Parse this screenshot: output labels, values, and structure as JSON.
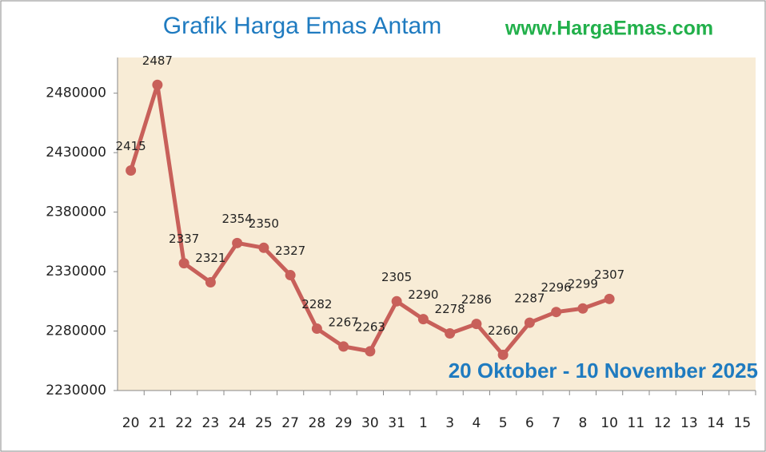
{
  "chart_data": {
    "type": "line",
    "title": "Grafik Harga Emas Antam",
    "source": "www.HargaEmas.com",
    "annotation": "20 Oktober - 10 November 2025",
    "categories": [
      "20",
      "21",
      "22",
      "23",
      "24",
      "25",
      "27",
      "28",
      "29",
      "30",
      "31",
      "1",
      "3",
      "4",
      "5",
      "6",
      "7",
      "8",
      "10",
      "11",
      "12",
      "13",
      "14",
      "15"
    ],
    "values": [
      2415000,
      2487000,
      2337000,
      2321000,
      2354000,
      2350000,
      2327000,
      2282000,
      2267000,
      2263000,
      2305000,
      2290000,
      2278000,
      2286000,
      2260000,
      2287000,
      2296000,
      2299000,
      2307000,
      null,
      null,
      null,
      null,
      null
    ],
    "value_labels": [
      "2415",
      "2487",
      "2337",
      "2321",
      "2354",
      "2350",
      "2327",
      "2282",
      "2267",
      "2263",
      "2305",
      "2290",
      "2278",
      "2286",
      "2260",
      "2287",
      "2296",
      "2299",
      "2307",
      null,
      null,
      null,
      null,
      null
    ],
    "color": "#c8605a",
    "ylim": [
      2230000,
      2510000
    ],
    "yticks": [
      2230000,
      2280000,
      2330000,
      2380000,
      2430000,
      2480000
    ]
  }
}
